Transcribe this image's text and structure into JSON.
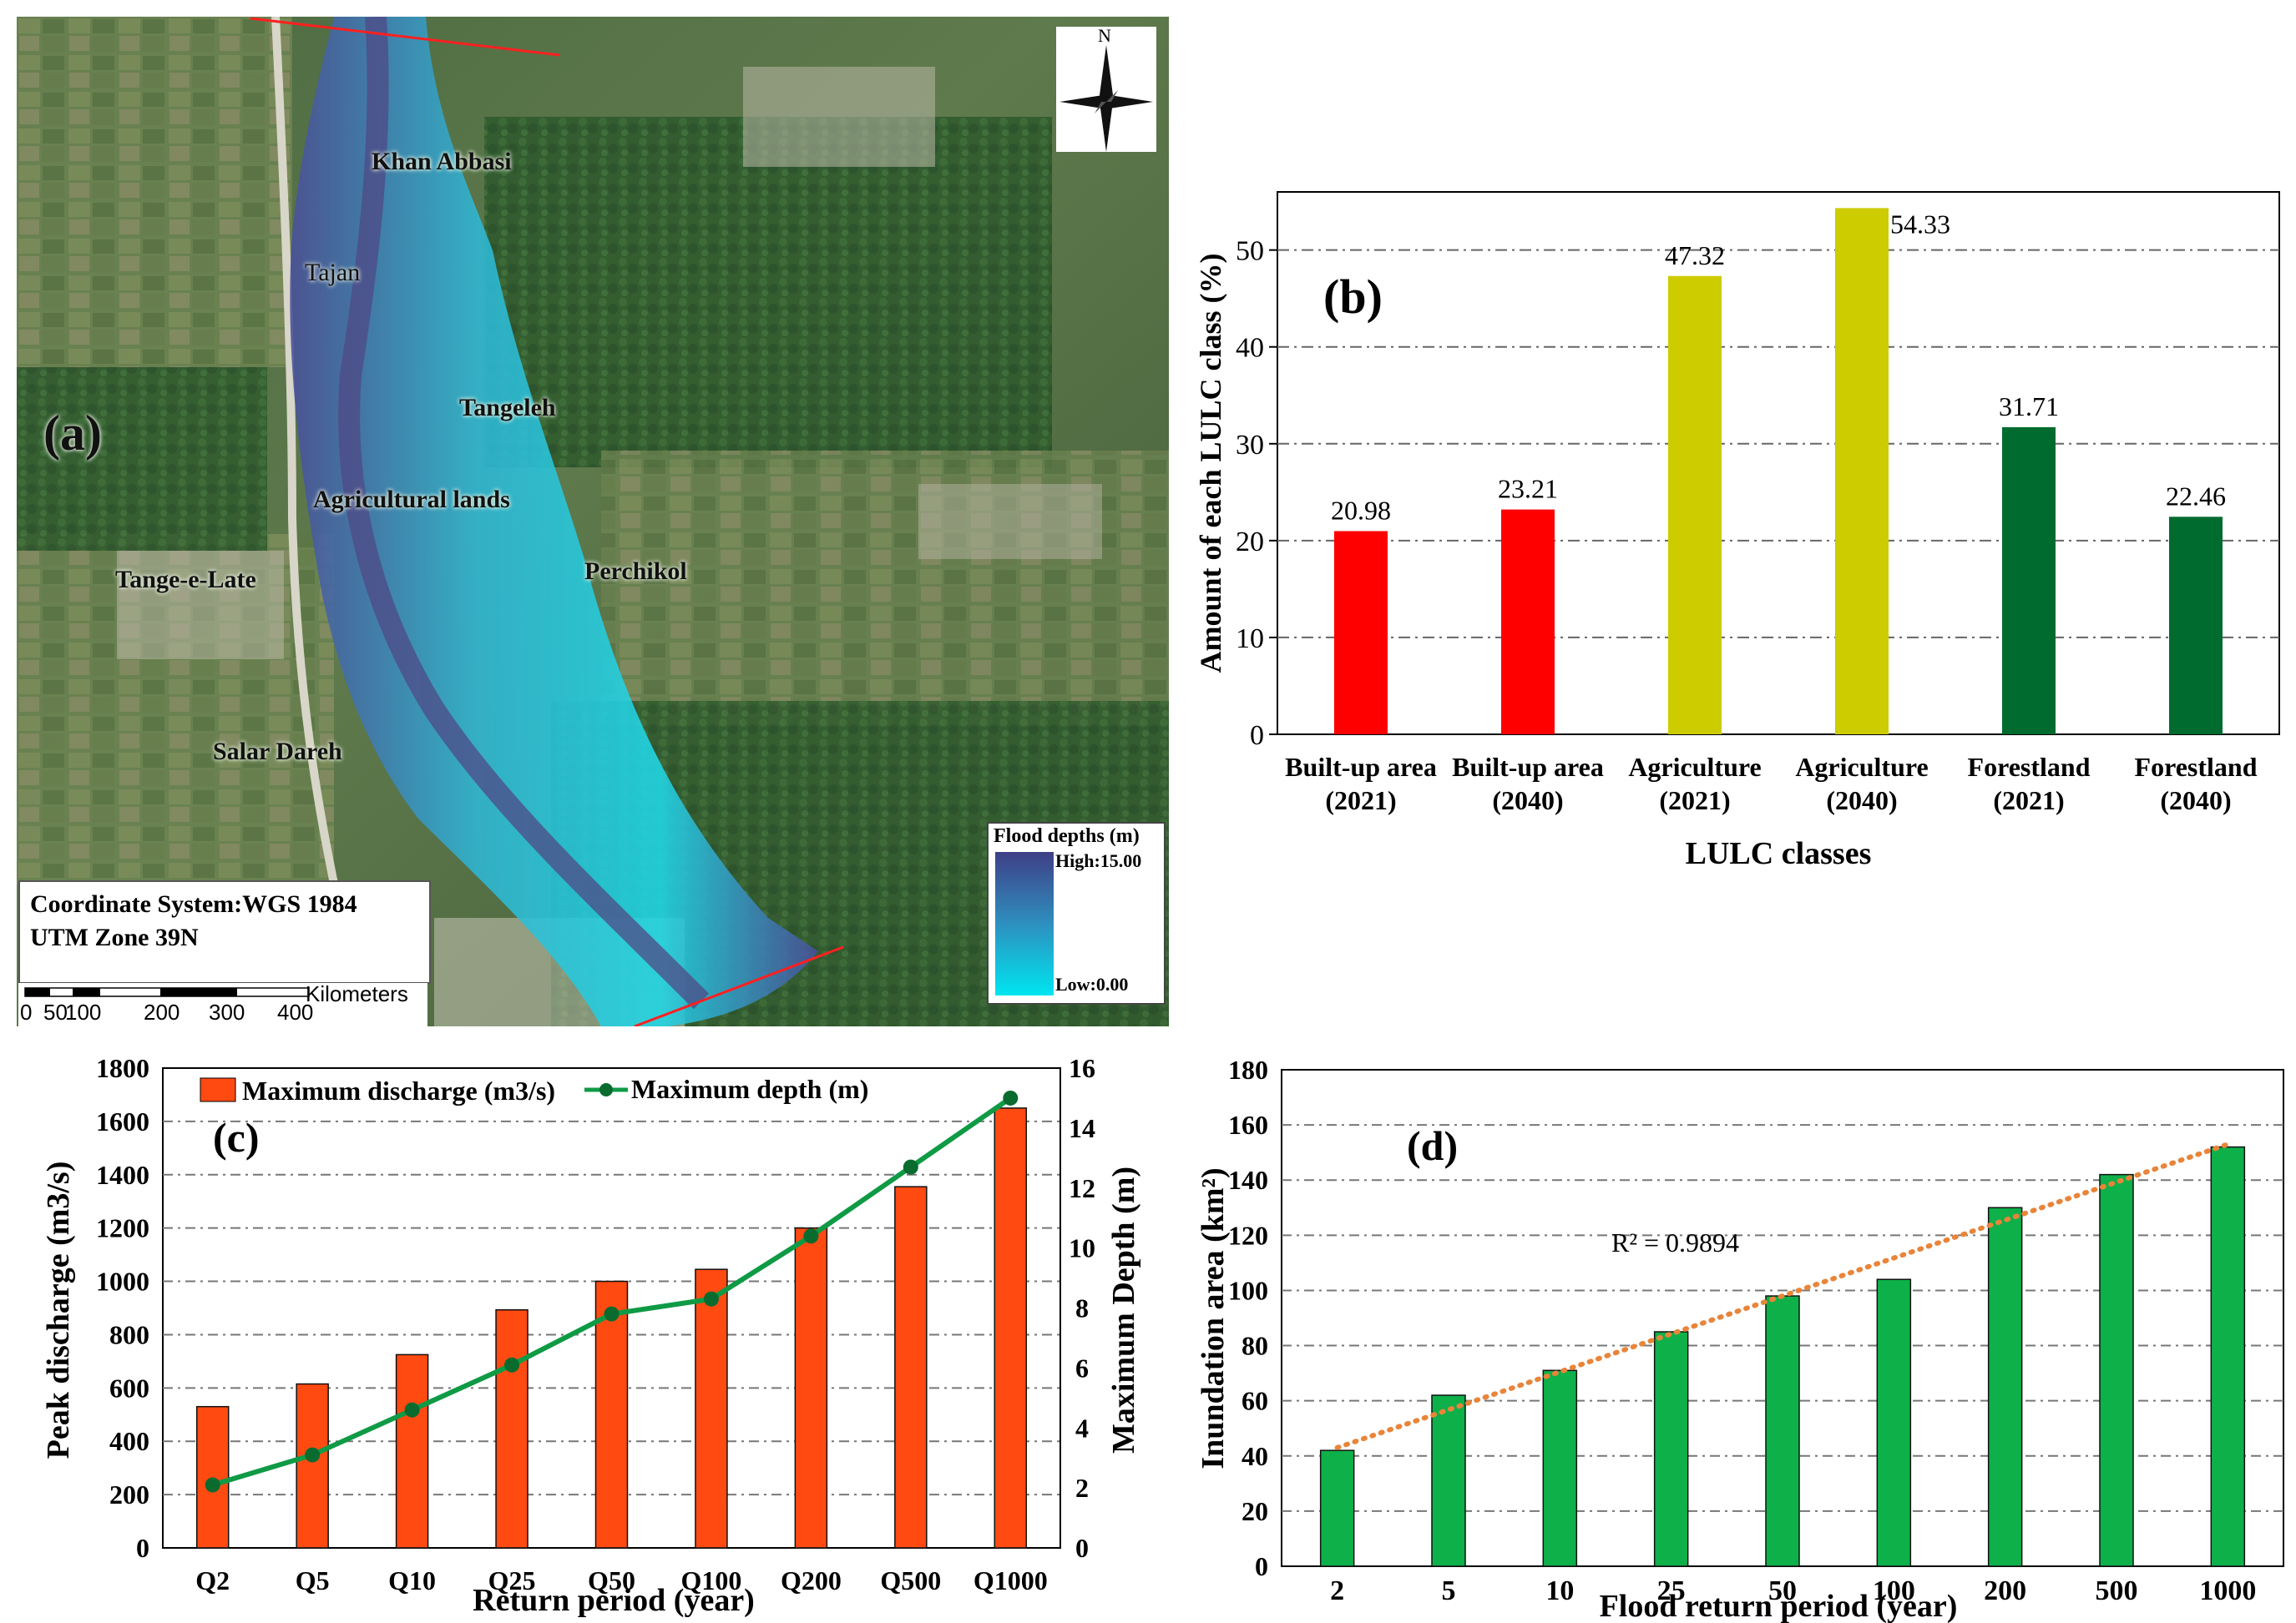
{
  "panel_a": {
    "panel_label": "(a)",
    "place_labels": {
      "khan_abbasi": "Khan Abbasi",
      "tajan": "Tajan",
      "tangeleh": "Tangeleh",
      "agricultural_lands": "Agricultural lands",
      "tange_e_late": "Tange-e-Late",
      "perchikol": "Perchikol",
      "salar_dareh": "Salar Dareh"
    },
    "north_label": "N",
    "coordinate_line1": "Coordinate System:WGS 1984",
    "coordinate_line2": "UTM Zone 39N",
    "scale_unit": "Kilometers",
    "scale_ticks": [
      "0",
      "50",
      "100",
      "200",
      "300",
      "400"
    ],
    "legend": {
      "title": "Flood depths (m)",
      "high": "High:15.00",
      "low": "Low:0.00",
      "color_high": "#3f3f86",
      "color_low": "#00e5f0"
    }
  },
  "chart_data": [
    {
      "id": "b",
      "type": "bar",
      "panel_label": "(b)",
      "categories": [
        [
          "Built-up area",
          "(2021)"
        ],
        [
          "Built-up area",
          "(2040)"
        ],
        [
          "Agriculture",
          "(2021)"
        ],
        [
          "Agriculture",
          "(2040)"
        ],
        [
          "Forestland",
          "(2021)"
        ],
        [
          "Forestland",
          "(2040)"
        ]
      ],
      "values": [
        20.98,
        23.21,
        47.32,
        54.33,
        31.71,
        22.46
      ],
      "value_labels": [
        "20.98",
        "23.21",
        "47.32",
        "54.33",
        "31.71",
        "22.46"
      ],
      "colors": [
        "#ff0000",
        "#ff0000",
        "#cccc00",
        "#cccc00",
        "#006b2e",
        "#006b2e"
      ],
      "xlabel": "LULC classes",
      "ylabel": "Amount of each LULC class (%)",
      "ylim": [
        0,
        56
      ],
      "yticks": [
        0,
        10,
        20,
        30,
        40,
        50
      ],
      "grid": true
    },
    {
      "id": "c",
      "type": "bar+line",
      "panel_label": "(c)",
      "categories": [
        "Q2",
        "Q5",
        "Q10",
        "Q25",
        "Q50",
        "Q100",
        "Q200",
        "Q500",
        "Q1000"
      ],
      "series": [
        {
          "name": "Maximum discharge (m3/s)",
          "type": "bar",
          "axis": "left",
          "color": "#ff4a12",
          "values": [
            530,
            615,
            725,
            893,
            1000,
            1045,
            1200,
            1355,
            1650
          ]
        },
        {
          "name": "Maximum depth (m)",
          "type": "line",
          "axis": "right",
          "color": "#0f9a45",
          "values": [
            2.1,
            3.1,
            4.6,
            6.1,
            7.8,
            8.3,
            10.4,
            12.7,
            15.0
          ]
        }
      ],
      "xlabel": "Return period (year)",
      "ylabel_left": "Peak discharge (m3/s)",
      "ylabel_right": "Maximum Depth (m)",
      "ylim_left": [
        0,
        1800
      ],
      "yticks_left": [
        0,
        200,
        400,
        600,
        800,
        1000,
        1200,
        1400,
        1600,
        1800
      ],
      "ylim_right": [
        0,
        16
      ],
      "yticks_right": [
        0,
        2,
        4,
        6,
        8,
        10,
        12,
        14,
        16
      ],
      "grid": true,
      "legend_placement": "top"
    },
    {
      "id": "d",
      "type": "bar",
      "panel_label": "(d)",
      "categories": [
        "2",
        "5",
        "10",
        "25",
        "50",
        "100",
        "200",
        "500",
        "1000"
      ],
      "values": [
        42,
        62,
        71,
        85,
        98,
        104,
        130,
        142,
        152
      ],
      "color": "#0eb04a",
      "trendline": {
        "r2_label": "R² = 0.9894",
        "start": 43,
        "end": 153,
        "color": "#e8853a"
      },
      "xlabel": "Flood return period (year)",
      "ylabel": "Inundation area (km²)",
      "ylim": [
        0,
        180
      ],
      "yticks": [
        0,
        20,
        40,
        60,
        80,
        100,
        120,
        140,
        160,
        180
      ],
      "grid": true
    }
  ]
}
